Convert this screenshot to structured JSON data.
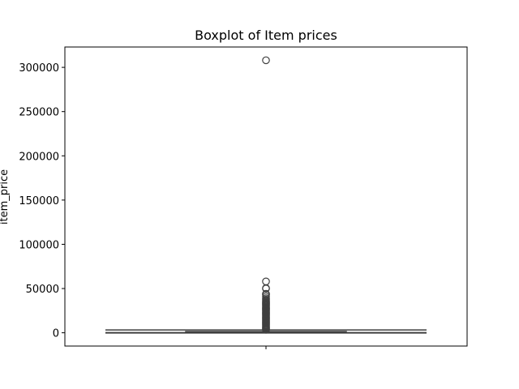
{
  "chart_data": {
    "type": "box",
    "title": "Boxplot of Item prices",
    "xlabel": "",
    "ylabel": "item_price",
    "ylim": [
      -15000,
      323000
    ],
    "yticks": [
      0,
      50000,
      100000,
      150000,
      200000,
      250000,
      300000
    ],
    "ytick_labels": [
      "0",
      "50000",
      "100000",
      "150000",
      "200000",
      "250000",
      "300000"
    ],
    "grid": false,
    "legend": "none",
    "box": {
      "min": 0,
      "q1": 200,
      "median": 600,
      "q3": 1400,
      "whisker_low": 0,
      "whisker_high": 3200
    },
    "outliers": [
      308000,
      58000,
      50500,
      50000,
      44000,
      43000,
      41000,
      39000,
      37500,
      36000,
      35000,
      34000,
      33000,
      32000,
      31000,
      30000,
      29000,
      28000,
      27000,
      26000,
      25000,
      24000,
      23000,
      22000,
      21000,
      20000,
      19000,
      18000,
      17000,
      16000,
      15000,
      14000,
      13000,
      12000,
      11000,
      10000,
      9000,
      8000,
      7000,
      6000,
      5000,
      4000,
      3500
    ],
    "colors": {
      "box_edge": "#3f3f3f",
      "box_fill": "#3f3f3f",
      "axes": "#000000"
    }
  }
}
